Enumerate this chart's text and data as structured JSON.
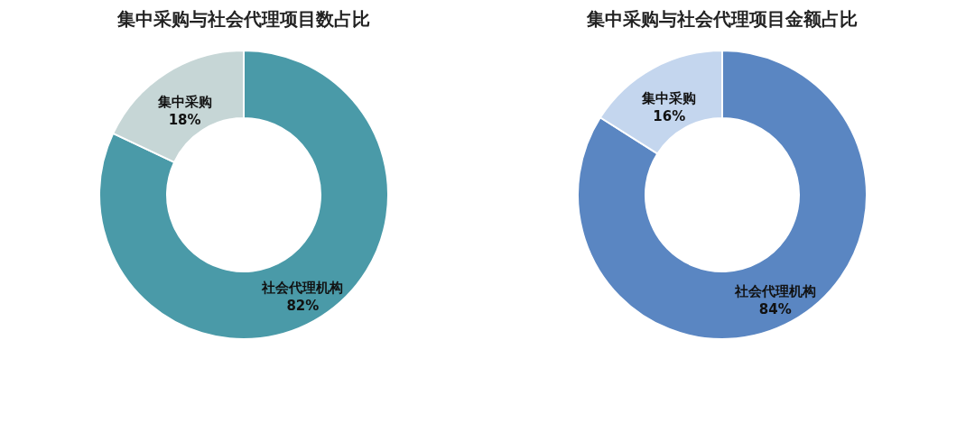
{
  "chart_data": [
    {
      "type": "donut",
      "title": "集中采购与社会代理项目数占比",
      "categories": [
        "社会代理机构",
        "集中采购"
      ],
      "values": [
        82,
        18
      ],
      "colors": [
        "#4a9aa8",
        "#c6d6d6"
      ],
      "value_labels": [
        "82%",
        "18%"
      ]
    },
    {
      "type": "donut",
      "title": "集中采购与社会代理项目金额占比",
      "categories": [
        "社会代理机构",
        "集中采购"
      ],
      "values": [
        84,
        16
      ],
      "colors": [
        "#5a86c2",
        "#c4d6ee"
      ],
      "value_labels": [
        "84%",
        "16%"
      ]
    }
  ]
}
